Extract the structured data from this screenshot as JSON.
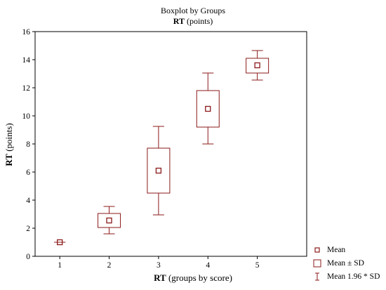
{
  "chart_data": {
    "type": "boxplot",
    "title": "Boxplot by Groups",
    "subtitle": {
      "bold": "RT",
      "rest": " (points)"
    },
    "xlabel": {
      "bold": "RT",
      "rest": " (groups by score)"
    },
    "ylabel": {
      "bold": "RT",
      "rest": " (points)"
    },
    "categories": [
      "1",
      "2",
      "3",
      "4",
      "5"
    ],
    "ylim": [
      0,
      16
    ],
    "yticks": [
      "0",
      "2",
      "4",
      "6",
      "8",
      "10",
      "12",
      "14",
      "16"
    ],
    "groups": [
      {
        "category": "1",
        "mean": 1.0,
        "box_low": 1.0,
        "box_high": 1.0,
        "whisker_low": 1.0,
        "whisker_high": 1.0
      },
      {
        "category": "2",
        "mean": 2.55,
        "box_low": 2.05,
        "box_high": 3.05,
        "whisker_low": 1.6,
        "whisker_high": 3.55
      },
      {
        "category": "3",
        "mean": 6.1,
        "box_low": 4.5,
        "box_high": 7.7,
        "whisker_low": 2.95,
        "whisker_high": 9.25
      },
      {
        "category": "4",
        "mean": 10.5,
        "box_low": 9.2,
        "box_high": 11.8,
        "whisker_low": 8.0,
        "whisker_high": 13.05
      },
      {
        "category": "5",
        "mean": 13.6,
        "box_low": 13.05,
        "box_high": 14.1,
        "whisker_low": 12.55,
        "whisker_high": 14.65
      }
    ],
    "legend": [
      "Mean",
      "Mean ± SD",
      "Mean 1.96 * SD"
    ],
    "legend_position": "bottom-right",
    "color": "#8b1a1a",
    "grid": false
  }
}
